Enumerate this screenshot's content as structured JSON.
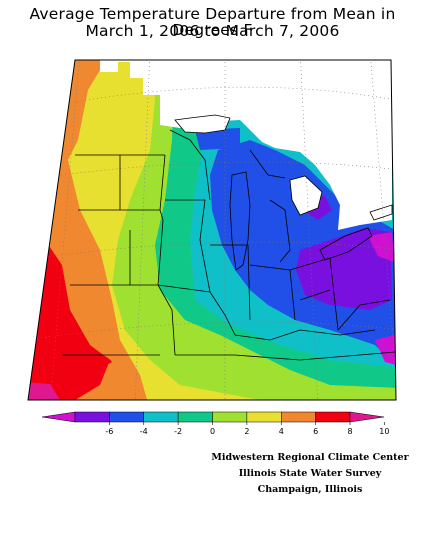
{
  "title": {
    "line1": "Average Temperature Departure from Mean in Degrees F",
    "line2": "March 1, 2006 to March 7, 2006"
  },
  "legend": {
    "ticks": [
      "-6",
      "-4",
      "-2",
      "0",
      "2",
      "4",
      "6",
      "8",
      "10"
    ],
    "colors": [
      "#d010d0",
      "#7a10e0",
      "#2050e8",
      "#10c0c8",
      "#10c888",
      "#a0e030",
      "#e8e030",
      "#f08830",
      "#f00010",
      "#e01890"
    ]
  },
  "credits": [
    "Midwestern Regional Climate Center",
    "Illinois State Water Survey",
    "Champaign, Illinois"
  ]
}
